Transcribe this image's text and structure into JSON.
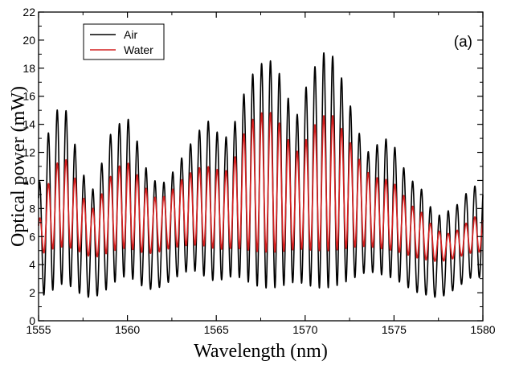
{
  "chart_data": {
    "type": "line",
    "xlabel": "Wavelength (nm)",
    "ylabel": "Optical power (mW)",
    "xlim": [
      1555,
      1580
    ],
    "ylim": [
      0,
      22
    ],
    "x_ticks": [
      "1555",
      "1560",
      "1565",
      "1570",
      "1575",
      "1580"
    ],
    "y_ticks": [
      "0",
      "2",
      "4",
      "6",
      "8",
      "10",
      "12",
      "14",
      "16",
      "18",
      "20",
      "22"
    ],
    "panel_label": "(a)",
    "grid": false,
    "legend_position": "top-left",
    "fringe_period_nm": 0.5,
    "series": [
      {
        "name": "Air",
        "color": "#000000",
        "envelope_x": [
          1555.0,
          1555.5,
          1556.0,
          1556.5,
          1557.0,
          1557.5,
          1558.0,
          1558.5,
          1559.0,
          1559.5,
          1560.0,
          1560.5,
          1561.0,
          1561.5,
          1562.0,
          1562.5,
          1563.0,
          1563.5,
          1564.0,
          1564.5,
          1565.0,
          1565.5,
          1566.0,
          1566.5,
          1567.0,
          1567.5,
          1568.0,
          1568.5,
          1569.0,
          1569.5,
          1570.0,
          1570.5,
          1571.0,
          1571.5,
          1572.0,
          1572.5,
          1573.0,
          1573.5,
          1574.0,
          1574.5,
          1575.0,
          1575.5,
          1576.0,
          1576.5,
          1577.0,
          1577.5,
          1578.0,
          1578.5,
          1579.0,
          1579.5,
          1580.0
        ],
        "max": [
          9.5,
          13.2,
          15.0,
          15.2,
          12.8,
          10.5,
          9.2,
          11.0,
          13.2,
          14.0,
          14.5,
          13.0,
          11.0,
          10.0,
          9.8,
          10.5,
          11.5,
          12.5,
          13.5,
          14.3,
          13.5,
          13.0,
          14.0,
          16.0,
          17.5,
          18.3,
          18.6,
          17.8,
          16.0,
          14.5,
          16.5,
          18.0,
          19.1,
          19.0,
          17.5,
          15.5,
          13.5,
          12.0,
          12.5,
          13.0,
          12.5,
          11.0,
          10.0,
          9.5,
          8.2,
          7.5,
          7.8,
          8.2,
          9.0,
          9.6,
          9.6
        ],
        "min": [
          1.6,
          2.0,
          2.3,
          2.8,
          2.2,
          1.8,
          1.6,
          1.9,
          2.4,
          3.0,
          3.2,
          2.8,
          2.3,
          2.2,
          2.5,
          2.9,
          3.3,
          3.6,
          3.5,
          3.0,
          2.8,
          3.0,
          3.2,
          3.0,
          2.6,
          2.4,
          2.3,
          2.4,
          2.6,
          2.8,
          2.6,
          2.4,
          2.3,
          2.4,
          2.6,
          2.9,
          3.2,
          3.5,
          3.4,
          3.2,
          3.0,
          2.6,
          2.2,
          1.9,
          1.8,
          1.6,
          1.9,
          2.3,
          2.8,
          3.2,
          3.0
        ]
      },
      {
        "name": "Water",
        "color": "#d42020",
        "envelope_x": [
          1555.0,
          1555.5,
          1556.0,
          1556.5,
          1557.0,
          1557.5,
          1558.0,
          1558.5,
          1559.0,
          1559.5,
          1560.0,
          1560.5,
          1561.0,
          1561.5,
          1562.0,
          1562.5,
          1563.0,
          1563.5,
          1564.0,
          1564.5,
          1565.0,
          1565.5,
          1566.0,
          1566.5,
          1567.0,
          1567.5,
          1568.0,
          1568.5,
          1569.0,
          1569.5,
          1570.0,
          1570.5,
          1571.0,
          1571.5,
          1572.0,
          1572.5,
          1573.0,
          1573.5,
          1574.0,
          1574.5,
          1575.0,
          1575.5,
          1576.0,
          1576.5,
          1577.0,
          1577.5,
          1578.0,
          1578.5,
          1579.0,
          1579.5,
          1580.0
        ],
        "max": [
          7.0,
          9.6,
          11.2,
          11.6,
          10.3,
          8.8,
          7.9,
          8.9,
          10.2,
          11.0,
          11.3,
          10.5,
          9.5,
          8.8,
          8.8,
          9.3,
          10.0,
          10.5,
          10.9,
          11.0,
          10.8,
          10.6,
          11.5,
          13.2,
          14.3,
          14.8,
          14.9,
          14.2,
          13.0,
          12.0,
          12.8,
          13.9,
          14.6,
          14.7,
          13.8,
          12.8,
          11.6,
          10.6,
          10.2,
          10.1,
          9.8,
          9.0,
          8.2,
          7.8,
          7.0,
          6.4,
          6.2,
          6.4,
          6.9,
          7.4,
          7.4
        ],
        "min": [
          4.6,
          5.0,
          5.2,
          5.3,
          5.1,
          4.8,
          4.5,
          4.6,
          4.9,
          5.1,
          5.2,
          5.0,
          4.8,
          4.8,
          5.0,
          5.2,
          5.3,
          5.4,
          5.4,
          5.3,
          5.1,
          5.1,
          5.2,
          5.1,
          5.0,
          4.9,
          4.9,
          4.9,
          5.0,
          5.1,
          5.1,
          5.0,
          5.0,
          5.0,
          5.1,
          5.2,
          5.3,
          5.3,
          5.2,
          5.1,
          5.0,
          4.8,
          4.6,
          4.4,
          4.3,
          4.2,
          4.3,
          4.5,
          4.7,
          4.9,
          4.9
        ]
      }
    ]
  }
}
